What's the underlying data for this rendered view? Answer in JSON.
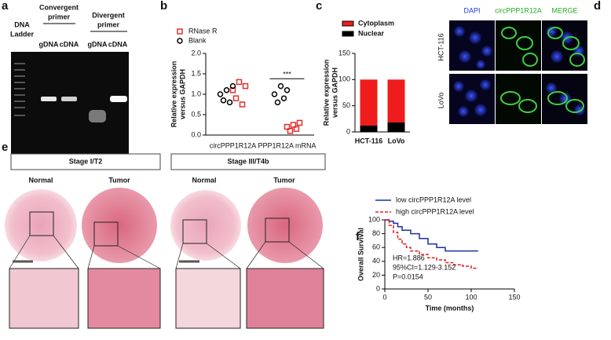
{
  "panel_labels": [
    "a",
    "b",
    "c",
    "d",
    "e",
    "f"
  ],
  "gel": {
    "ladder_label": [
      "DNA",
      "Ladder"
    ],
    "primers": [
      [
        "Convergent",
        "primer"
      ],
      [
        "Divergent",
        "primer"
      ]
    ],
    "lanes": [
      "gDNA",
      "cDNA",
      "gDNA",
      "cDNA"
    ]
  },
  "microscopy": {
    "columns": [
      "DAPI",
      "circPPP1R12A",
      "MERGE"
    ],
    "rows": [
      "HCT-116",
      "LoVo"
    ]
  },
  "histology": {
    "stages": [
      "Stage I/T2",
      "Stage III/T4b"
    ],
    "columns": [
      "Normal",
      "Tumor",
      "Normal",
      "Tumor"
    ]
  },
  "chart_data": [
    {
      "type": "dot",
      "y_label": [
        "Relative expression",
        "versus GAPDH"
      ],
      "categories": [
        "circPPP1R12A",
        "PPP1R12A mRNA"
      ],
      "series": [
        {
          "name": "RNase R",
          "color": "#e03030",
          "marker": "square",
          "values": [
            [
              1.1,
              0.9,
              1.3,
              0.75,
              1.2
            ],
            [
              0.2,
              0.1,
              0.25,
              0.15,
              0.3
            ]
          ]
        },
        {
          "name": "Blank",
          "color": "#000000",
          "marker": "circle",
          "values": [
            [
              1.0,
              0.85,
              1.1,
              0.8,
              1.2
            ],
            [
              1.0,
              0.8,
              1.2,
              0.9,
              1.1
            ]
          ]
        }
      ],
      "annotation": "***",
      "ylim": [
        0,
        2
      ],
      "yticks": [
        {
          "value": 0,
          "label": "0.0"
        },
        0.5,
        {
          "value": 1,
          "label": "1.0"
        },
        1.5,
        {
          "value": 2,
          "label": "2.0"
        }
      ]
    },
    {
      "type": "stacked_bar",
      "y_label": [
        "Relative expression",
        "versus GAPDH"
      ],
      "categories": [
        "HCT-116",
        "LoVo"
      ],
      "series": [
        {
          "name": "Cytoplasm",
          "color": "#ee1c1c",
          "values": [
            88,
            82
          ]
        },
        {
          "name": "Nuclear",
          "color": "#000000",
          "values": [
            12,
            18
          ]
        }
      ],
      "ylim": [
        0,
        150
      ],
      "yticks": [
        0,
        50,
        100,
        150
      ]
    },
    {
      "type": "line",
      "x_label": "Time (months)",
      "y_label": "Overall Survival",
      "series": [
        {
          "name": "low circPPP1R12A level",
          "color": "#1f2fa0",
          "line_style": "solid",
          "x": [
            0,
            5,
            10,
            15,
            20,
            30,
            40,
            50,
            60,
            70,
            80,
            90,
            100,
            108
          ],
          "values": [
            100,
            98,
            95,
            90,
            85,
            80,
            73,
            65,
            60,
            55,
            55,
            55,
            55,
            55
          ]
        },
        {
          "name": "high circPPP1R12A level",
          "color": "#e02020",
          "line_style": "dashed",
          "x": [
            0,
            5,
            10,
            15,
            20,
            25,
            30,
            40,
            50,
            60,
            70,
            80,
            90,
            100,
            108
          ],
          "values": [
            100,
            92,
            82,
            72,
            65,
            60,
            55,
            50,
            45,
            42,
            38,
            35,
            33,
            30,
            30
          ]
        }
      ],
      "annotations": [
        "HR=1.886",
        "95%CI=1.129-3.152",
        "P=0.0154"
      ],
      "xlim": [
        0,
        150
      ],
      "xticks": [
        0,
        50,
        100,
        150
      ],
      "ylim": [
        0,
        100
      ],
      "yticks": [
        0,
        20,
        40,
        60,
        80,
        100
      ]
    }
  ]
}
